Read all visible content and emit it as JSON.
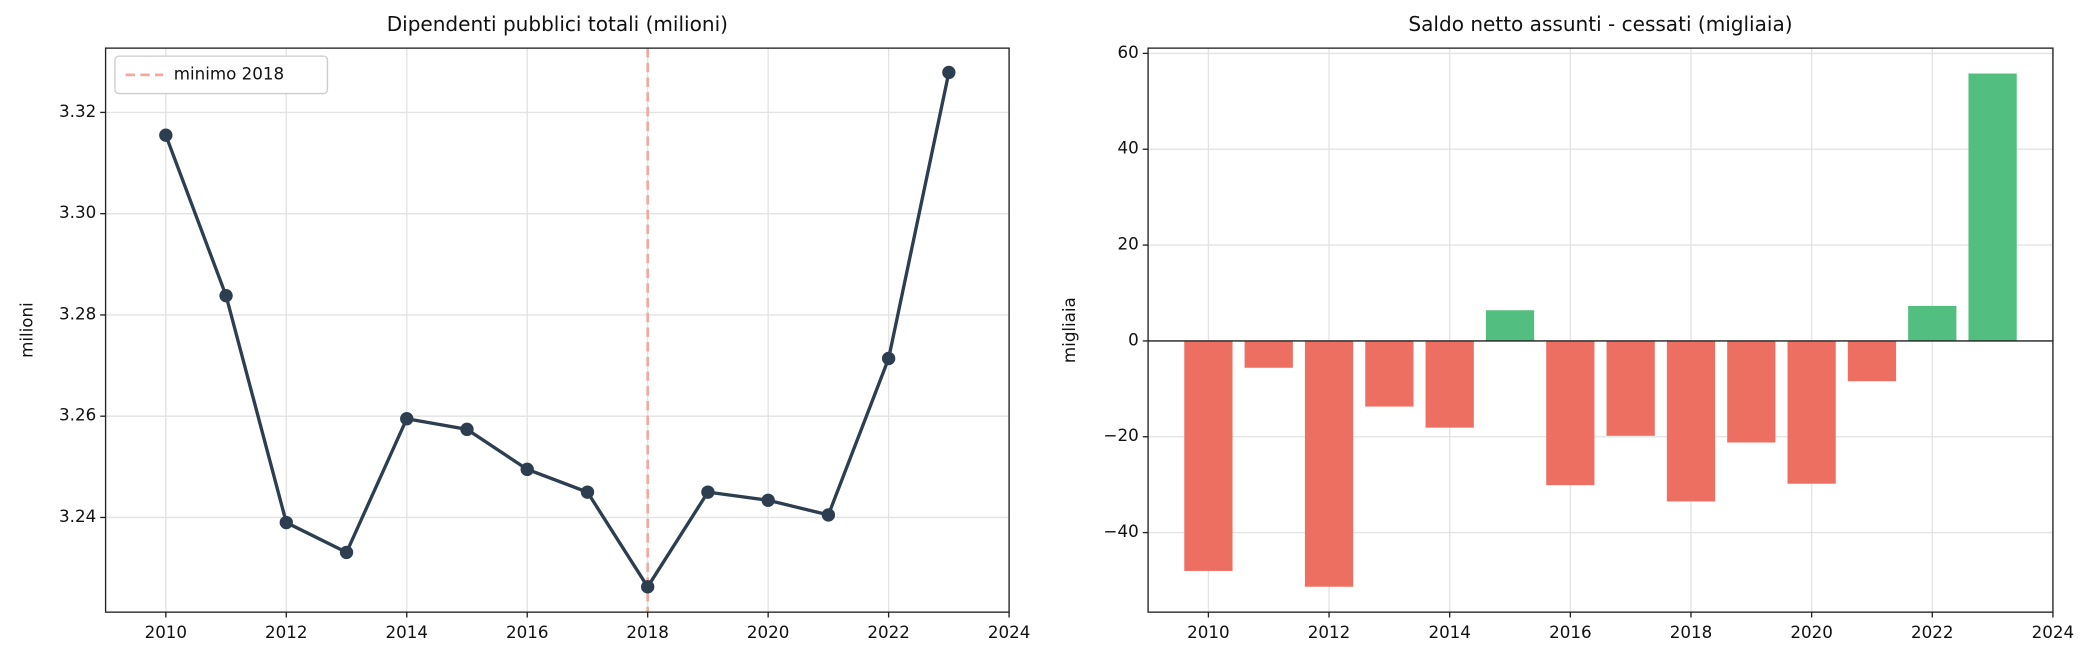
{
  "chart_data": [
    {
      "type": "line",
      "title": "Dipendenti pubblici totali (milioni)",
      "y_label": "milioni",
      "x": [
        2010,
        2011,
        2012,
        2013,
        2014,
        2015,
        2016,
        2017,
        2018,
        2019,
        2020,
        2021,
        2022,
        2023
      ],
      "values": [
        3.3155,
        3.2838,
        3.239,
        3.2331,
        3.2595,
        3.2574,
        3.2495,
        3.245,
        3.2263,
        3.245,
        3.2434,
        3.2405,
        3.2714,
        3.3279
      ],
      "color": "#2c3e50",
      "xlim": [
        2009,
        2024
      ],
      "xticks": [
        2010,
        2012,
        2014,
        2016,
        2018,
        2020,
        2022,
        2024
      ],
      "ylim": [
        3.2213,
        3.3327
      ],
      "yticks": [
        3.24,
        3.26,
        3.28,
        {
          "value": 3.3,
          "label": "3.30"
        },
        3.32
      ],
      "grid": true,
      "vline": {
        "x": 2018,
        "label": "minimo 2018",
        "color": "#f1a9a0"
      },
      "legend": "upper left"
    },
    {
      "type": "bar",
      "title": "Saldo netto assunti - cessati (migliaia)",
      "y_label": "migliaia",
      "x": [
        2010,
        2011,
        2012,
        2013,
        2014,
        2015,
        2016,
        2017,
        2018,
        2019,
        2020,
        2021,
        2022,
        2023
      ],
      "values": [
        -48,
        -5.6,
        -51.3,
        -13.7,
        -18.1,
        6.4,
        -30.1,
        -19.8,
        -33.5,
        -21.2,
        -29.8,
        -8.4,
        7.3,
        55.8
      ],
      "positive_color": "#52be80",
      "negative_color": "#ec6f61",
      "xlim": [
        2009,
        2024
      ],
      "xticks": [
        2010,
        2012,
        2014,
        2016,
        2018,
        2020,
        2022,
        2024
      ],
      "ylim": [
        -56.6,
        61.1
      ],
      "yticks": [
        {
          "value": -40,
          "label": "−40"
        },
        {
          "value": -20,
          "label": "−20"
        },
        0,
        20,
        40,
        60
      ],
      "grid": true
    }
  ]
}
